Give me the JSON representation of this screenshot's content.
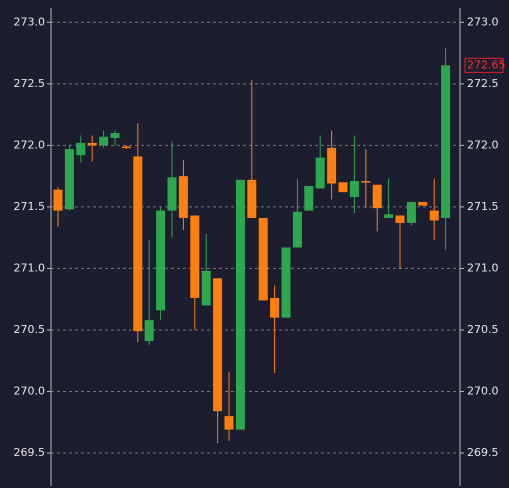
{
  "chart_data": {
    "type": "candlestick",
    "open": [
      271.64,
      271.48,
      271.92,
      272.02,
      272.0,
      272.06,
      271.99,
      271.91,
      270.41,
      270.66,
      271.47,
      271.75,
      271.43,
      270.7,
      270.92,
      269.8,
      269.69,
      271.72,
      271.41,
      270.76,
      270.6,
      271.17,
      271.47,
      271.65,
      271.98,
      271.7,
      271.58,
      271.71,
      271.68,
      271.41,
      271.43,
      271.37,
      271.54,
      271.47,
      271.41
    ],
    "high": [
      271.66,
      272.0,
      272.08,
      272.08,
      272.12,
      272.12,
      272.0,
      272.18,
      271.23,
      271.5,
      272.03,
      271.88,
      271.43,
      271.28,
      270.92,
      270.16,
      271.72,
      272.53,
      271.41,
      270.86,
      271.17,
      271.73,
      271.67,
      272.08,
      272.12,
      271.7,
      272.08,
      271.97,
      271.68,
      271.73,
      271.43,
      271.54,
      271.54,
      271.73,
      272.79
    ],
    "low": [
      271.34,
      271.47,
      271.86,
      271.87,
      271.98,
      272.0,
      271.97,
      270.4,
      270.38,
      270.58,
      271.25,
      271.31,
      270.5,
      270.7,
      269.58,
      269.6,
      269.69,
      271.41,
      270.74,
      270.15,
      270.6,
      271.17,
      271.47,
      271.65,
      271.56,
      271.62,
      271.45,
      271.49,
      271.3,
      271.41,
      271.0,
      271.35,
      271.51,
      271.23,
      271.15
    ],
    "close": [
      271.47,
      271.97,
      272.02,
      272.0,
      272.07,
      272.1,
      271.98,
      270.49,
      270.58,
      271.47,
      271.74,
      271.41,
      270.76,
      270.98,
      269.84,
      269.69,
      271.72,
      271.41,
      270.74,
      270.6,
      271.17,
      271.46,
      271.67,
      271.9,
      271.69,
      271.62,
      271.71,
      271.7,
      271.49,
      271.44,
      271.37,
      271.54,
      271.51,
      271.39,
      272.65
    ],
    "up_color": "#2ea84f",
    "down_color": "#ff7f0e",
    "ylim": [
      269.24,
      273.1
    ],
    "yticks": [
      {
        "value": 269.5,
        "label": "269.5"
      },
      {
        "value": 270,
        "label": "270.0"
      },
      {
        "value": 270.5,
        "label": "270.5"
      },
      {
        "value": 271,
        "label": "271.0"
      },
      {
        "value": 271.5,
        "label": "271.5"
      },
      {
        "value": 272,
        "label": "272.0"
      },
      {
        "value": 272.5,
        "label": "272.5"
      },
      {
        "value": 273,
        "label": "273.0"
      }
    ],
    "grid": true
  }
}
